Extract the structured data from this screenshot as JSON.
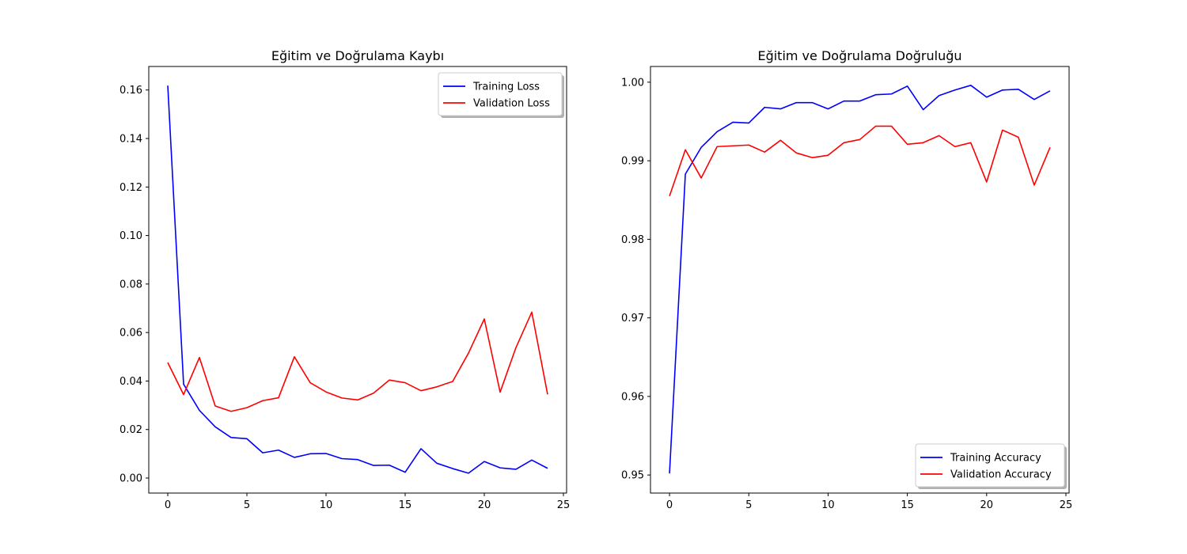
{
  "chart_data": [
    {
      "type": "line",
      "title": "Eğitim ve Doğrulama Kaybı",
      "xlabel": "",
      "ylabel": "",
      "xlim": [
        -1.2,
        25.2
      ],
      "ylim": [
        -0.0062,
        0.1697
      ],
      "xticks": [
        0,
        5,
        10,
        15,
        20,
        25
      ],
      "xtick_labels": [
        "0",
        "5",
        "10",
        "15",
        "20",
        "25"
      ],
      "yticks": [
        0.0,
        0.02,
        0.04,
        0.06,
        0.08,
        0.1,
        0.12,
        0.14,
        0.16
      ],
      "ytick_labels": [
        "0.00",
        "0.02",
        "0.04",
        "0.06",
        "0.08",
        "0.10",
        "0.12",
        "0.14",
        "0.16"
      ],
      "grid": false,
      "legend": "top-right",
      "x": [
        0,
        1,
        2,
        3,
        4,
        5,
        6,
        7,
        8,
        9,
        10,
        11,
        12,
        13,
        14,
        15,
        16,
        17,
        18,
        19,
        20,
        21,
        22,
        23,
        24
      ],
      "series": [
        {
          "name": "Training Loss",
          "color": "#0000ff",
          "values": [
            0.1618,
            0.0387,
            0.0279,
            0.0211,
            0.0167,
            0.0162,
            0.0104,
            0.0115,
            0.0085,
            0.01,
            0.0101,
            0.008,
            0.0076,
            0.0052,
            0.0053,
            0.0024,
            0.0121,
            0.0061,
            0.0039,
            0.002,
            0.0068,
            0.0042,
            0.0036,
            0.0074,
            0.004
          ]
        },
        {
          "name": "Validation Loss",
          "color": "#ff0000",
          "values": [
            0.0476,
            0.0344,
            0.0497,
            0.0297,
            0.0275,
            0.029,
            0.0319,
            0.0331,
            0.05,
            0.0393,
            0.0355,
            0.033,
            0.0322,
            0.035,
            0.0404,
            0.0393,
            0.036,
            0.0376,
            0.0398,
            0.0515,
            0.0656,
            0.0354,
            0.0538,
            0.0684,
            0.0345
          ]
        }
      ]
    },
    {
      "type": "line",
      "title": "Eğitim ve Doğrulama Doğruluğu",
      "xlabel": "",
      "ylabel": "",
      "xlim": [
        -1.2,
        25.2
      ],
      "ylim": [
        0.9477,
        1.002
      ],
      "xticks": [
        0,
        5,
        10,
        15,
        20,
        25
      ],
      "xtick_labels": [
        "0",
        "5",
        "10",
        "15",
        "20",
        "25"
      ],
      "yticks": [
        0.95,
        0.96,
        0.97,
        0.98,
        0.99,
        1.0
      ],
      "ytick_labels": [
        "0.95",
        "0.96",
        "0.97",
        "0.98",
        "0.99",
        "1.00"
      ],
      "grid": false,
      "legend": "bottom-right",
      "x": [
        0,
        1,
        2,
        3,
        4,
        5,
        6,
        7,
        8,
        9,
        10,
        11,
        12,
        13,
        14,
        15,
        16,
        17,
        18,
        19,
        20,
        21,
        22,
        23,
        24
      ],
      "series": [
        {
          "name": "Training Accuracy",
          "color": "#0000ff",
          "values": [
            0.9502,
            0.9883,
            0.9917,
            0.9937,
            0.9949,
            0.9948,
            0.9968,
            0.9966,
            0.9974,
            0.9974,
            0.9966,
            0.9976,
            0.9976,
            0.9984,
            0.9985,
            0.9995,
            0.9965,
            0.9983,
            0.999,
            0.9996,
            0.9981,
            0.999,
            0.9991,
            0.9978,
            0.9989
          ]
        },
        {
          "name": "Validation Accuracy",
          "color": "#ff0000",
          "values": [
            0.9855,
            0.9914,
            0.9878,
            0.9918,
            0.9919,
            0.992,
            0.9911,
            0.9926,
            0.991,
            0.9904,
            0.9907,
            0.9923,
            0.9927,
            0.9944,
            0.9944,
            0.9921,
            0.9923,
            0.9932,
            0.9918,
            0.9923,
            0.9873,
            0.9939,
            0.993,
            0.9869,
            0.9917
          ]
        }
      ]
    }
  ]
}
